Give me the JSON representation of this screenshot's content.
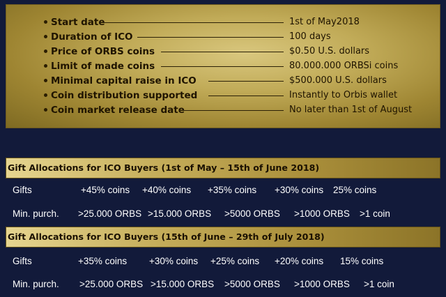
{
  "ico_details": [
    {
      "label": "Start date",
      "value": "1st of May2018"
    },
    {
      "label": "Duration of  ICO",
      "value": "100 days"
    },
    {
      "label": "Price of ORBS coins",
      "value": "$0.50 U.S. dollars"
    },
    {
      "label": "Limit of made coins",
      "value": "80.000.000 ORBSi coins"
    },
    {
      "label": "Minimal capital raise in ICO",
      "value": "$500.000 U.S. dollars"
    },
    {
      "label": "Coin distribution supported",
      "value": "Instantly to Orbis wallet"
    },
    {
      "label": "Coin market release date",
      "value": "No later than 1st of August"
    }
  ],
  "gift_tables": [
    {
      "title": "Gift Allocations for ICO Buyers (1st of May  – 15th of June 2018)",
      "gifts_label": "Gifts",
      "gifts": [
        "+45% coins",
        "+40% coins",
        "+35% coins",
        "+30% coins",
        "25%  coins"
      ],
      "min_label": "Min. purch.",
      "min_purchases": [
        ">25.000 ORBS",
        ">15.000 ORBS",
        ">5000 ORBS",
        ">1000 ORBS",
        ">1 coin"
      ]
    },
    {
      "title": "Gift Allocations for ICO Buyers (15th of June – 29th of July 2018)",
      "gifts_label": "Gifts",
      "gifts": [
        "+35% coins",
        "+30% coins",
        "+25% coins",
        "+20% coins",
        "15% coins"
      ],
      "min_label": "Min. purch.",
      "min_purchases": [
        ">25.000 ORBS",
        ">15.000 ORBS",
        ">5000 ORBS",
        ">1000 ORBS",
        ">1 coin"
      ]
    }
  ]
}
